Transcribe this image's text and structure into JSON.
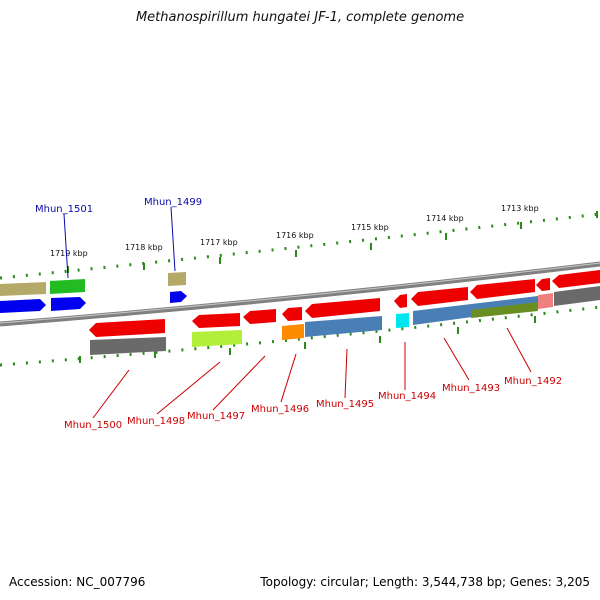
{
  "title": "Methanospirillum hungatei JF-1, complete genome",
  "footer": {
    "accession": "Accession: NC_007796",
    "summary": "Topology: circular; Length: 3,544,738 bp; Genes: 3,205"
  },
  "ticks": [
    {
      "label": "1719 kbp"
    },
    {
      "label": "1718 kbp"
    },
    {
      "label": "1717 kbp"
    },
    {
      "label": "1716 kbp"
    },
    {
      "label": "1715 kbp"
    },
    {
      "label": "1714 kbp"
    },
    {
      "label": "1713 kbp"
    }
  ],
  "gene_labels_top": [
    {
      "label": "Mhun_1501"
    },
    {
      "label": "Mhun_1499"
    }
  ],
  "gene_labels_bottom": [
    {
      "label": "Mhun_1500"
    },
    {
      "label": "Mhun_1498"
    },
    {
      "label": "Mhun_1497"
    },
    {
      "label": "Mhun_1496"
    },
    {
      "label": "Mhun_1495"
    },
    {
      "label": "Mhun_1494"
    },
    {
      "label": "Mhun_1493"
    },
    {
      "label": "Mhun_1492"
    }
  ],
  "colors": {
    "gene_red": "#ee0000",
    "blue": "#0000ee",
    "green": "#22bb22",
    "khaki": "#b5a96a",
    "gray": "#6a6a6a",
    "steelblue": "#4a7fb5",
    "olive": "#6b8e23",
    "orange": "#ff8c00",
    "cyan": "#00e5ee",
    "limegreen": "#b3ee3a",
    "pink": "#f08080",
    "tick_green": "#2a8a1a",
    "backbone": "#808080",
    "label_blue": "#0a0aa8",
    "label_red": "#cc0000"
  }
}
